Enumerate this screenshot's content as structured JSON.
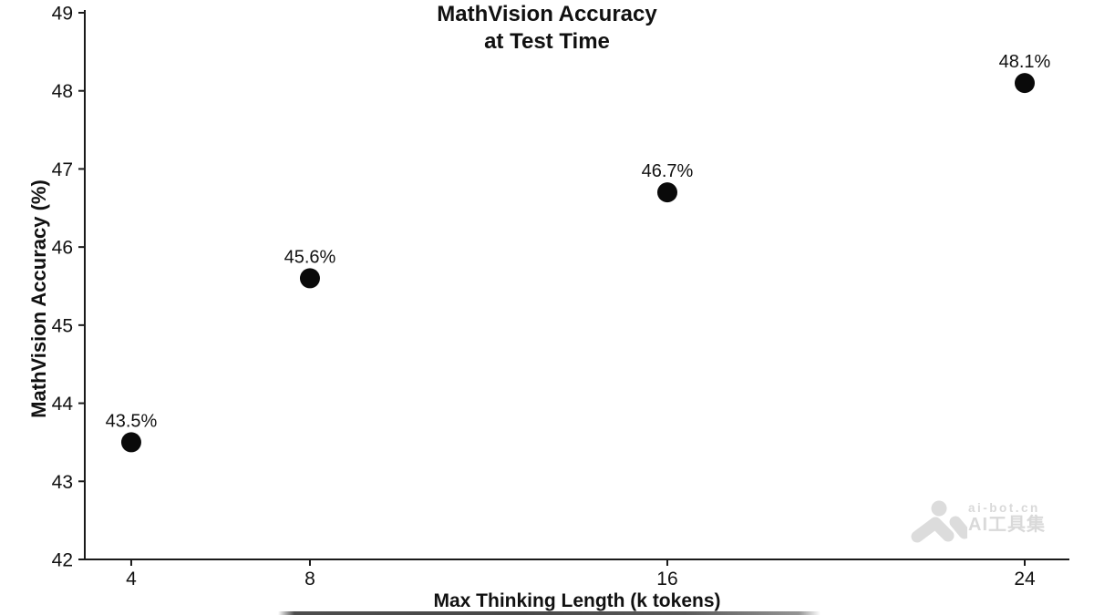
{
  "chart_data": {
    "type": "scatter",
    "title": "MathVision Accuracy\nat Test Time",
    "xlabel": "Max Thinking Length (k tokens)",
    "ylabel": "MathVision Accuracy (%)",
    "x": [
      4,
      8,
      16,
      24
    ],
    "y": [
      43.5,
      45.6,
      46.7,
      48.1
    ],
    "point_labels": [
      "43.5%",
      "45.6%",
      "46.7%",
      "48.1%"
    ],
    "xticks": [
      4,
      8,
      16,
      24
    ],
    "yticks": [
      42,
      43,
      44,
      45,
      46,
      47,
      48,
      49
    ],
    "xlim": [
      2.96,
      25.0
    ],
    "ylim": [
      42,
      49
    ],
    "grid": false,
    "legend": "none",
    "point_color": "#0a0a0a",
    "axis_color": "#1a1a1a"
  },
  "watermark": {
    "brand": "ai-bot.cn",
    "name": "AI工具集",
    "color": "#d9d9d9"
  }
}
